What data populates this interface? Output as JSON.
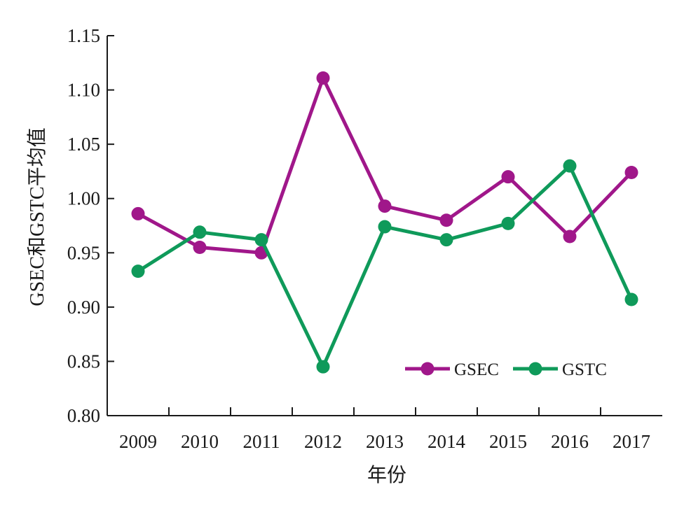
{
  "chart_data": {
    "type": "line",
    "title": "",
    "xlabel": "年份",
    "ylabel": "GSEC和GSTC平均值",
    "categories": [
      "2009",
      "2010",
      "2011",
      "2012",
      "2013",
      "2014",
      "2015",
      "2016",
      "2017"
    ],
    "ylim": [
      0.8,
      1.15
    ],
    "yticks": [
      "0.80",
      "0.85",
      "0.90",
      "0.95",
      "1.00",
      "1.05",
      "1.10",
      "1.15"
    ],
    "grid": false,
    "legend_position": "bottom-right",
    "series": [
      {
        "name": "GSEC",
        "color": "#a0178a",
        "values": [
          0.986,
          0.955,
          0.95,
          1.111,
          0.993,
          0.98,
          1.02,
          0.965,
          1.024
        ]
      },
      {
        "name": "GSTC",
        "color": "#0f9a5a",
        "values": [
          0.933,
          0.969,
          0.962,
          0.845,
          0.974,
          0.962,
          0.977,
          1.03,
          0.907
        ]
      }
    ]
  }
}
